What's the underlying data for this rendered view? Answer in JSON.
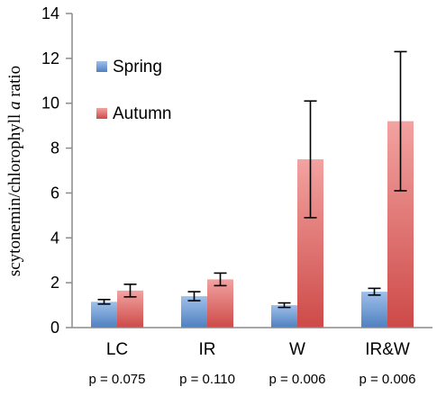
{
  "chart_data": {
    "type": "bar",
    "categories": [
      "LC",
      "IR",
      "W",
      "IR&W"
    ],
    "annotations": [
      "p = 0.075",
      "p = 0.110",
      "p = 0.006",
      "p = 0.006"
    ],
    "ylabel_parts": [
      "scytonemin/chlorophyll ",
      "a",
      " ratio"
    ],
    "ylim": [
      0,
      14
    ],
    "yticks": [
      0,
      2,
      4,
      6,
      8,
      10,
      12,
      14
    ],
    "grid": false,
    "legend_position": "top-left",
    "series": [
      {
        "name": "Spring",
        "values": [
          1.15,
          1.4,
          1.0,
          1.6
        ],
        "error": [
          0.1,
          0.2,
          0.1,
          0.15
        ],
        "color_top": "#9ec0ea",
        "color_bottom": "#4f80c0"
      },
      {
        "name": "Autumn",
        "values": [
          1.65,
          2.15,
          7.5,
          9.2
        ],
        "error": [
          0.28,
          0.28,
          2.6,
          3.1
        ],
        "color_top": "#f2a3a1",
        "color_bottom": "#cd4a48"
      }
    ]
  }
}
